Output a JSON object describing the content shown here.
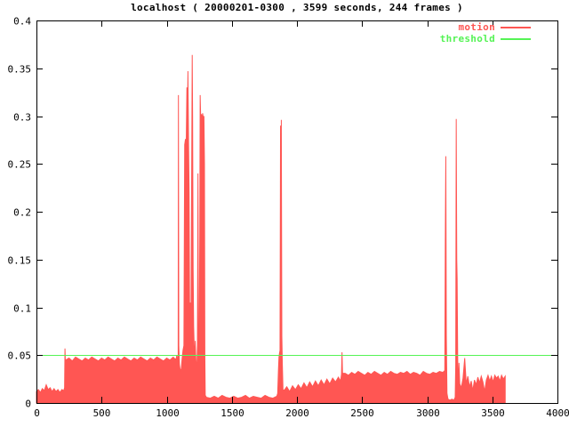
{
  "title": "localhost ( 20000201-0300 , 3599 seconds, 244 frames )",
  "legend": {
    "entries": [
      {
        "label": "motion",
        "color": "#ff5653"
      },
      {
        "label": "threshold",
        "color": "#55f355"
      }
    ]
  },
  "colors": {
    "background": "#ffffff",
    "axis": "#000000",
    "motion": "#ff5653",
    "threshold": "#55f355"
  },
  "chart_data": {
    "type": "area",
    "title": "localhost ( 20000201-0300 , 3599 seconds, 244 frames )",
    "xlabel": "",
    "ylabel": "",
    "xlim": [
      0,
      4000
    ],
    "ylim": [
      0,
      0.4
    ],
    "x_ticks": [
      "0",
      "500",
      "1000",
      "1500",
      "2000",
      "2500",
      "3000",
      "3500",
      "4000"
    ],
    "y_ticks": [
      "0",
      "0.05",
      "0.1",
      "0.15",
      "0.2",
      "0.25",
      "0.3",
      "0.35",
      "0.4"
    ],
    "grid": false,
    "legend_position": "top-right-inside",
    "series": [
      {
        "name": "motion",
        "kind": "area",
        "color": "#ff5653",
        "points": [
          [
            0,
            0.012
          ],
          [
            15,
            0.014
          ],
          [
            30,
            0.011
          ],
          [
            45,
            0.015
          ],
          [
            60,
            0.013
          ],
          [
            75,
            0.019
          ],
          [
            90,
            0.014
          ],
          [
            105,
            0.016
          ],
          [
            120,
            0.012
          ],
          [
            135,
            0.015
          ],
          [
            150,
            0.012
          ],
          [
            165,
            0.014
          ],
          [
            180,
            0.011
          ],
          [
            195,
            0.014
          ],
          [
            210,
            0.013
          ],
          [
            216,
            0.016
          ],
          [
            219,
            0.057
          ],
          [
            222,
            0.044
          ],
          [
            225,
            0.045
          ],
          [
            250,
            0.047
          ],
          [
            275,
            0.044
          ],
          [
            300,
            0.048
          ],
          [
            325,
            0.046
          ],
          [
            350,
            0.044
          ],
          [
            375,
            0.047
          ],
          [
            400,
            0.045
          ],
          [
            425,
            0.048
          ],
          [
            450,
            0.046
          ],
          [
            475,
            0.044
          ],
          [
            500,
            0.047
          ],
          [
            525,
            0.045
          ],
          [
            550,
            0.048
          ],
          [
            575,
            0.046
          ],
          [
            600,
            0.044
          ],
          [
            625,
            0.047
          ],
          [
            650,
            0.045
          ],
          [
            675,
            0.048
          ],
          [
            700,
            0.046
          ],
          [
            725,
            0.044
          ],
          [
            750,
            0.047
          ],
          [
            775,
            0.045
          ],
          [
            800,
            0.048
          ],
          [
            825,
            0.046
          ],
          [
            850,
            0.044
          ],
          [
            875,
            0.047
          ],
          [
            900,
            0.045
          ],
          [
            925,
            0.048
          ],
          [
            950,
            0.046
          ],
          [
            975,
            0.044
          ],
          [
            1000,
            0.047
          ],
          [
            1025,
            0.045
          ],
          [
            1050,
            0.048
          ],
          [
            1065,
            0.046
          ],
          [
            1072,
            0.046
          ],
          [
            1078,
            0.05
          ],
          [
            1083,
            0.042
          ],
          [
            1088,
            0.05
          ],
          [
            1090,
            0.322
          ],
          [
            1093,
            0.06
          ],
          [
            1098,
            0.04
          ],
          [
            1105,
            0.033
          ],
          [
            1112,
            0.036
          ],
          [
            1118,
            0.046
          ],
          [
            1125,
            0.055
          ],
          [
            1132,
            0.06
          ],
          [
            1138,
            0.27
          ],
          [
            1144,
            0.276
          ],
          [
            1150,
            0.272
          ],
          [
            1155,
            0.33
          ],
          [
            1158,
            0.275
          ],
          [
            1163,
            0.347
          ],
          [
            1168,
            0.27
          ],
          [
            1172,
            0.22
          ],
          [
            1176,
            0.09
          ],
          [
            1181,
            0.105
          ],
          [
            1186,
            0.075
          ],
          [
            1191,
            0.22
          ],
          [
            1196,
            0.364
          ],
          [
            1199,
            0.3
          ],
          [
            1203,
            0.14
          ],
          [
            1207,
            0.08
          ],
          [
            1211,
            0.06
          ],
          [
            1215,
            0.042
          ],
          [
            1219,
            0.065
          ],
          [
            1223,
            0.05
          ],
          [
            1227,
            0.038
          ],
          [
            1231,
            0.036
          ],
          [
            1236,
            0.06
          ],
          [
            1240,
            0.24
          ],
          [
            1244,
            0.06
          ],
          [
            1249,
            0.042
          ],
          [
            1254,
            0.18
          ],
          [
            1257,
            0.322
          ],
          [
            1261,
            0.298
          ],
          [
            1266,
            0.302
          ],
          [
            1271,
            0.297
          ],
          [
            1276,
            0.303
          ],
          [
            1281,
            0.298
          ],
          [
            1286,
            0.3
          ],
          [
            1290,
            0.25
          ],
          [
            1293,
            0.05
          ],
          [
            1296,
            0.008
          ],
          [
            1305,
            0.006
          ],
          [
            1335,
            0.005
          ],
          [
            1365,
            0.007
          ],
          [
            1395,
            0.005
          ],
          [
            1425,
            0.008
          ],
          [
            1455,
            0.006
          ],
          [
            1485,
            0.005
          ],
          [
            1515,
            0.007
          ],
          [
            1545,
            0.005
          ],
          [
            1575,
            0.006
          ],
          [
            1605,
            0.008
          ],
          [
            1635,
            0.005
          ],
          [
            1665,
            0.007
          ],
          [
            1695,
            0.006
          ],
          [
            1725,
            0.005
          ],
          [
            1755,
            0.008
          ],
          [
            1785,
            0.006
          ],
          [
            1815,
            0.005
          ],
          [
            1845,
            0.007
          ],
          [
            1852,
            0.01
          ],
          [
            1858,
            0.035
          ],
          [
            1862,
            0.048
          ],
          [
            1866,
            0.052
          ],
          [
            1870,
            0.055
          ],
          [
            1874,
            0.29
          ],
          [
            1877,
            0.13
          ],
          [
            1880,
            0.296
          ],
          [
            1884,
            0.07
          ],
          [
            1888,
            0.04
          ],
          [
            1893,
            0.014
          ],
          [
            1900,
            0.013
          ],
          [
            1922,
            0.017
          ],
          [
            1944,
            0.012
          ],
          [
            1966,
            0.018
          ],
          [
            1988,
            0.014
          ],
          [
            2010,
            0.019
          ],
          [
            2032,
            0.015
          ],
          [
            2054,
            0.021
          ],
          [
            2076,
            0.016
          ],
          [
            2098,
            0.022
          ],
          [
            2120,
            0.017
          ],
          [
            2142,
            0.023
          ],
          [
            2164,
            0.018
          ],
          [
            2186,
            0.024
          ],
          [
            2208,
            0.019
          ],
          [
            2230,
            0.025
          ],
          [
            2252,
            0.02
          ],
          [
            2274,
            0.026
          ],
          [
            2296,
            0.022
          ],
          [
            2318,
            0.027
          ],
          [
            2335,
            0.023
          ],
          [
            2342,
            0.03
          ],
          [
            2346,
            0.053
          ],
          [
            2350,
            0.031
          ],
          [
            2370,
            0.031
          ],
          [
            2395,
            0.029
          ],
          [
            2420,
            0.032
          ],
          [
            2445,
            0.03
          ],
          [
            2470,
            0.033
          ],
          [
            2495,
            0.031
          ],
          [
            2520,
            0.029
          ],
          [
            2545,
            0.032
          ],
          [
            2570,
            0.03
          ],
          [
            2595,
            0.033
          ],
          [
            2620,
            0.031
          ],
          [
            2645,
            0.029
          ],
          [
            2670,
            0.032
          ],
          [
            2695,
            0.03
          ],
          [
            2720,
            0.033
          ],
          [
            2745,
            0.031
          ],
          [
            2770,
            0.03
          ],
          [
            2795,
            0.032
          ],
          [
            2820,
            0.031
          ],
          [
            2845,
            0.033
          ],
          [
            2870,
            0.03
          ],
          [
            2895,
            0.032
          ],
          [
            2920,
            0.031
          ],
          [
            2945,
            0.029
          ],
          [
            2970,
            0.033
          ],
          [
            2995,
            0.031
          ],
          [
            3020,
            0.03
          ],
          [
            3045,
            0.032
          ],
          [
            3070,
            0.031
          ],
          [
            3095,
            0.033
          ],
          [
            3120,
            0.032
          ],
          [
            3135,
            0.034
          ],
          [
            3139,
            0.17
          ],
          [
            3143,
            0.258
          ],
          [
            3147,
            0.07
          ],
          [
            3152,
            0.01
          ],
          [
            3160,
            0.004
          ],
          [
            3175,
            0.003
          ],
          [
            3190,
            0.004
          ],
          [
            3205,
            0.003
          ],
          [
            3215,
            0.006
          ],
          [
            3219,
            0.04
          ],
          [
            3223,
            0.297
          ],
          [
            3227,
            0.15
          ],
          [
            3230,
            0.13
          ],
          [
            3234,
            0.05
          ],
          [
            3238,
            0.015
          ],
          [
            3244,
            0.042
          ],
          [
            3250,
            0.02
          ],
          [
            3262,
            0.016
          ],
          [
            3275,
            0.026
          ],
          [
            3288,
            0.047
          ],
          [
            3300,
            0.02
          ],
          [
            3312,
            0.028
          ],
          [
            3325,
            0.017
          ],
          [
            3338,
            0.023
          ],
          [
            3350,
            0.013
          ],
          [
            3363,
            0.024
          ],
          [
            3376,
            0.019
          ],
          [
            3389,
            0.027
          ],
          [
            3402,
            0.021
          ],
          [
            3415,
            0.028
          ],
          [
            3428,
            0.022
          ],
          [
            3441,
            0.012
          ],
          [
            3454,
            0.024
          ],
          [
            3467,
            0.029
          ],
          [
            3480,
            0.023
          ],
          [
            3493,
            0.028
          ],
          [
            3506,
            0.022
          ],
          [
            3519,
            0.029
          ],
          [
            3532,
            0.026
          ],
          [
            3545,
            0.028
          ],
          [
            3558,
            0.023
          ],
          [
            3571,
            0.029
          ],
          [
            3584,
            0.025
          ],
          [
            3599,
            0.028
          ]
        ]
      },
      {
        "name": "threshold",
        "kind": "hline",
        "color": "#55f355",
        "value": 0.05
      }
    ]
  }
}
